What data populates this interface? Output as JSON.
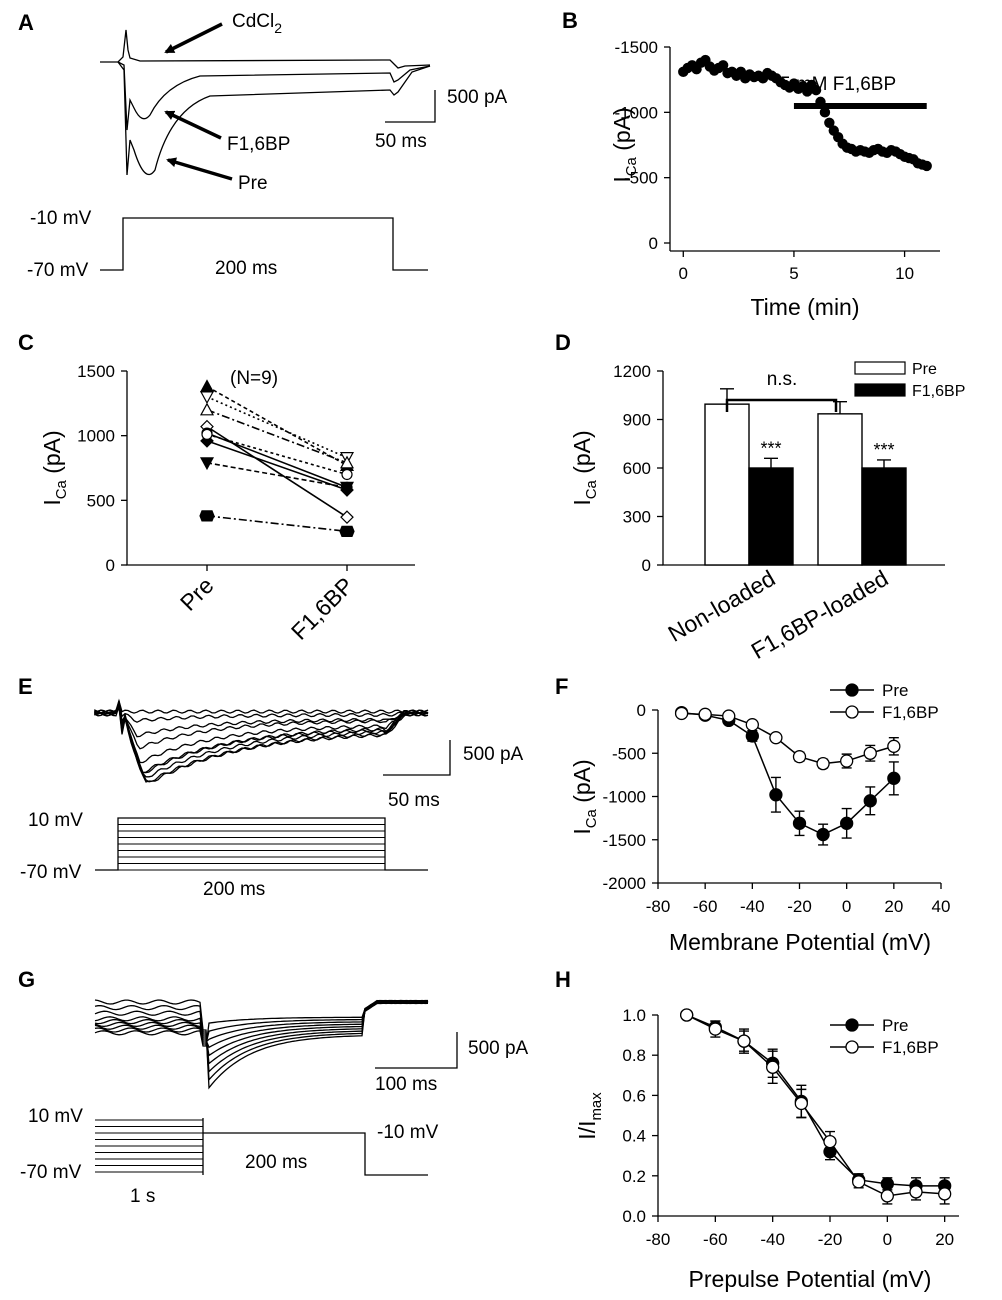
{
  "colors": {
    "ink": "#000000",
    "background": "#ffffff",
    "open_marker": "#ffffff"
  },
  "panels": {
    "A": {
      "label": "A",
      "drug": "CdCl",
      "drug_sub": "2",
      "trace1": "F1,6BP",
      "trace2": "Pre",
      "scale_i": "500 pA",
      "scale_t": "50 ms",
      "v_hold": "-70 mV",
      "v_step": "-10 mV",
      "duration": "200 ms"
    },
    "B": {
      "label": "B",
      "bar": "5 mM F1,6BP",
      "bar_start_min": 5,
      "bar_end_min": 11
    },
    "C": {
      "label": "C",
      "n": "(N=9)"
    },
    "D": {
      "label": "D",
      "ns": "n.s.",
      "stars": "***"
    },
    "E": {
      "label": "E",
      "scale_i": "500 pA",
      "scale_t": "50 ms",
      "v_top": "10 mV",
      "v_hold": "-70 mV",
      "duration": "200 ms"
    },
    "F": {
      "label": "F"
    },
    "G": {
      "label": "G",
      "scale_i": "500 pA",
      "scale_t": "100 ms",
      "v_top": "10 mV",
      "v_hold": "-70 mV",
      "v_test": "-10 mV",
      "prepulse": "1 s",
      "duration": "200 ms"
    },
    "H": {
      "label": "H"
    }
  },
  "chart_data": [
    {
      "id": "B",
      "type": "scatter",
      "xlabel": "Time (min)",
      "ylabel": "I",
      "ylabel_sub": "Ca",
      "ylabel_unit": "(pA)",
      "xlim": [
        -0.6,
        11.6
      ],
      "ylim": [
        -1500,
        0
      ],
      "xticks": [
        0,
        5,
        10
      ],
      "yticks": [
        0,
        -500,
        -1000,
        -1500
      ],
      "x": [
        0.0,
        0.2,
        0.4,
        0.6,
        0.8,
        1.0,
        1.2,
        1.4,
        1.6,
        1.8,
        2.0,
        2.2,
        2.4,
        2.6,
        2.8,
        3.0,
        3.2,
        3.4,
        3.6,
        3.8,
        4.0,
        4.2,
        4.4,
        4.6,
        4.8,
        5.0,
        5.2,
        5.4,
        5.6,
        5.8,
        6.0,
        6.2,
        6.4,
        6.6,
        6.8,
        7.0,
        7.2,
        7.4,
        7.6,
        7.8,
        8.0,
        8.2,
        8.4,
        8.6,
        8.8,
        9.0,
        9.2,
        9.4,
        9.6,
        9.8,
        10.0,
        10.2,
        10.4,
        10.6,
        10.8,
        11.0
      ],
      "y": [
        -1310,
        -1340,
        -1360,
        -1330,
        -1380,
        -1400,
        -1350,
        -1320,
        -1340,
        -1360,
        -1300,
        -1310,
        -1280,
        -1310,
        -1260,
        -1290,
        -1270,
        -1280,
        -1260,
        -1300,
        -1280,
        -1260,
        -1230,
        -1210,
        -1190,
        -1220,
        -1180,
        -1200,
        -1160,
        -1210,
        -1170,
        -1080,
        -1000,
        -920,
        -860,
        -810,
        -760,
        -730,
        -720,
        -700,
        -710,
        -700,
        -690,
        -710,
        -720,
        -700,
        -690,
        -710,
        -700,
        -680,
        -660,
        -650,
        -640,
        -610,
        -600,
        -590
      ]
    },
    {
      "id": "C",
      "type": "line",
      "categories": [
        "Pre",
        "F1,6BP"
      ],
      "ylabel": "I",
      "ylabel_sub": "Ca",
      "ylabel_unit": "(pA)",
      "ylim": [
        0,
        1500
      ],
      "yticks": [
        0,
        500,
        1000,
        1500
      ],
      "series": [
        {
          "name": "cell1",
          "marker": "tri-up-filled",
          "dash": "4,3",
          "values": [
            1380,
            770
          ]
        },
        {
          "name": "cell2",
          "marker": "tri-down-open",
          "dash": "2,3",
          "values": [
            1300,
            830
          ]
        },
        {
          "name": "cell3",
          "marker": "tri-up-open",
          "dash": "8,3,2,3",
          "values": [
            1200,
            790
          ]
        },
        {
          "name": "cell4",
          "marker": "diamond-open",
          "dash": "",
          "values": [
            1070,
            370
          ]
        },
        {
          "name": "cell5",
          "marker": "circle-filled",
          "dash": "",
          "values": [
            1020,
            600
          ]
        },
        {
          "name": "cell6",
          "marker": "diamond-filled",
          "dash": "",
          "values": [
            960,
            580
          ]
        },
        {
          "name": "cell7",
          "marker": "tri-down-filled",
          "dash": "5,3",
          "values": [
            790,
            600
          ]
        },
        {
          "name": "cell8",
          "marker": "hexagon-filled",
          "dash": "8,3,2,3",
          "values": [
            380,
            260
          ]
        },
        {
          "name": "cell9",
          "marker": "circle-open",
          "dash": "3,3",
          "values": [
            1010,
            700
          ]
        }
      ]
    },
    {
      "id": "D",
      "type": "bar",
      "categories": [
        "Non-loaded",
        "F1,6BP-loaded"
      ],
      "ylabel": "I",
      "ylabel_sub": "Ca",
      "ylabel_unit": "(pA)",
      "ylim": [
        0,
        1200
      ],
      "yticks": [
        0,
        300,
        600,
        900,
        1200
      ],
      "series": [
        {
          "name": "Pre",
          "fill": "#ffffff",
          "values": [
            995,
            935
          ],
          "errors": [
            95,
            75
          ]
        },
        {
          "name": "F1,6BP",
          "fill": "#000000",
          "values": [
            600,
            600
          ],
          "errors": [
            60,
            50
          ]
        }
      ]
    },
    {
      "id": "F",
      "type": "line",
      "xlabel": "Membrane Potential (mV)",
      "ylabel": "I",
      "ylabel_sub": "Ca",
      "ylabel_unit": "(pA)",
      "xlim": [
        -80,
        40
      ],
      "ylim": [
        -2000,
        0
      ],
      "xticks": [
        -80,
        -60,
        -40,
        -20,
        0,
        20,
        40
      ],
      "yticks": [
        0,
        -500,
        -1000,
        -1500,
        -2000
      ],
      "x": [
        -70,
        -60,
        -50,
        -40,
        -30,
        -20,
        -10,
        0,
        10,
        20
      ],
      "series": [
        {
          "name": "Pre",
          "fill": "#000000",
          "values": [
            -30,
            -60,
            -120,
            -300,
            -980,
            -1310,
            -1440,
            -1310,
            -1050,
            -790
          ],
          "errors": [
            20,
            20,
            40,
            60,
            200,
            140,
            120,
            170,
            160,
            190
          ]
        },
        {
          "name": "F1,6BP",
          "fill": "#ffffff",
          "values": [
            -40,
            -50,
            -70,
            -170,
            -320,
            -540,
            -620,
            -590,
            -500,
            -420
          ],
          "errors": [
            20,
            20,
            20,
            30,
            40,
            50,
            50,
            80,
            90,
            100
          ]
        }
      ]
    },
    {
      "id": "H",
      "type": "line",
      "xlabel": "Prepulse Potential (mV)",
      "ylabel": "I/I",
      "ylabel_sub": "max",
      "xlim": [
        -80,
        25
      ],
      "ylim": [
        0,
        1.0
      ],
      "xticks": [
        -80,
        -60,
        -40,
        -20,
        0,
        20
      ],
      "yticks": [
        0.0,
        0.2,
        0.4,
        0.6,
        0.8,
        1.0
      ],
      "x": [
        -70,
        -60,
        -50,
        -40,
        -30,
        -20,
        -10,
        0,
        10,
        20
      ],
      "series": [
        {
          "name": "Pre",
          "fill": "#000000",
          "values": [
            1.0,
            0.94,
            0.87,
            0.76,
            0.57,
            0.32,
            0.18,
            0.16,
            0.15,
            0.15
          ],
          "errors": [
            0,
            0.03,
            0.05,
            0.07,
            0.08,
            0.04,
            0.03,
            0.03,
            0.04,
            0.04
          ]
        },
        {
          "name": "F1,6BP",
          "fill": "#ffffff",
          "values": [
            1.0,
            0.93,
            0.87,
            0.74,
            0.56,
            0.37,
            0.17,
            0.1,
            0.12,
            0.11
          ],
          "errors": [
            0,
            0.04,
            0.06,
            0.08,
            0.07,
            0.05,
            0.03,
            0.04,
            0.04,
            0.05
          ]
        }
      ]
    }
  ]
}
